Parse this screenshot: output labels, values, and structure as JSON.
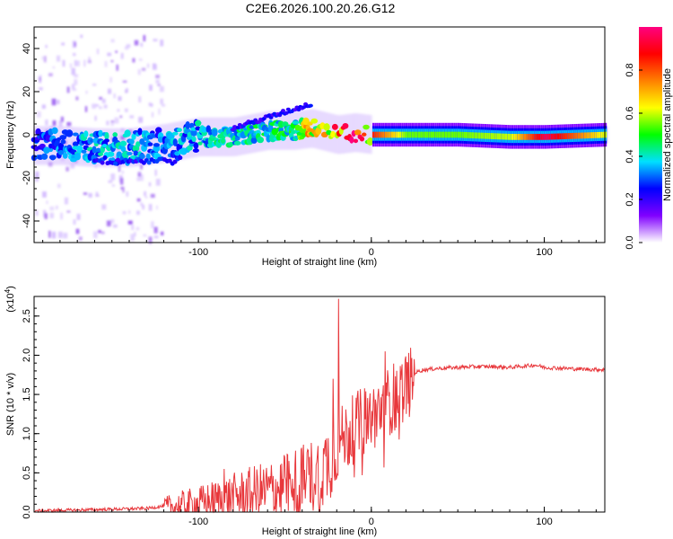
{
  "figure_title": "C2E6.2026.100.20.26.G12",
  "chart_data": [
    {
      "type": "heatmap",
      "title": "C2E6.2026.100.20.26.G12",
      "xlabel": "Height of straight line (km)",
      "ylabel": "Frequency (Hz)",
      "xlim": [
        -195,
        135
      ],
      "ylim": [
        -50,
        50
      ],
      "xticks": [
        -100,
        0,
        100
      ],
      "yticks": [
        -40,
        -20,
        0,
        20,
        40
      ],
      "colorbar": {
        "label": "Normalized spectral amplitude",
        "range": [
          0,
          1
        ],
        "ticks": [
          "0.0",
          "0.2",
          "0.4",
          "0.6",
          "0.8"
        ],
        "colors": [
          "#ffffff",
          "#8000ff",
          "#0000ff",
          "#00e0ff",
          "#00ff00",
          "#ffff00",
          "#ff8000",
          "#ff0000",
          "#ff0080"
        ]
      },
      "ridge": {
        "x": [
          -195,
          -180,
          -160,
          -140,
          -120,
          -100,
          -80,
          -60,
          -45,
          -35,
          -30,
          -20,
          -10,
          0,
          20,
          50,
          80,
          100,
          135
        ],
        "frequency": [
          -5,
          -5,
          -6,
          -6,
          -4,
          -1,
          -1,
          2,
          2,
          3,
          2,
          0,
          1,
          0,
          0,
          0,
          -1,
          -1,
          0
        ],
        "amplitude": [
          0.3,
          0.35,
          0.4,
          0.4,
          0.35,
          0.4,
          0.45,
          0.45,
          0.5,
          0.75,
          0.7,
          0.9,
          0.95,
          0.85,
          0.55,
          0.55,
          0.6,
          0.95,
          0.6
        ]
      }
    },
    {
      "type": "line",
      "xlabel": "Height of straight line (km)",
      "ylabel": "SNR (10 * v/v)",
      "yscale_label": "(x10",
      "yscale_exp": "4",
      "xlim": [
        -195,
        135
      ],
      "ylim": [
        0,
        2.75
      ],
      "xticks": [
        -100,
        0,
        100
      ],
      "yticks": [
        "0.0",
        "0.5",
        "1.0",
        "1.5",
        "2.0",
        "2.5"
      ],
      "color": "#e8383c",
      "series": [
        {
          "name": "SNR",
          "x": [
            -195,
            -170,
            -150,
            -130,
            -120,
            -110,
            -100,
            -90,
            -80,
            -70,
            -60,
            -50,
            -40,
            -30,
            -25,
            -20,
            -18,
            -15,
            -10,
            -5,
            0,
            5,
            10,
            15,
            20,
            25,
            30,
            40,
            50,
            60,
            70,
            80,
            90,
            95,
            100,
            110,
            120,
            135
          ],
          "y": [
            0.02,
            0.03,
            0.04,
            0.05,
            0.08,
            0.12,
            0.15,
            0.2,
            0.25,
            0.3,
            0.35,
            0.4,
            0.5,
            0.6,
            0.75,
            0.95,
            1.0,
            1.05,
            1.15,
            1.25,
            1.3,
            1.4,
            1.5,
            1.6,
            1.7,
            1.78,
            1.82,
            1.84,
            1.85,
            1.86,
            1.86,
            1.85,
            1.87,
            1.88,
            1.85,
            1.84,
            1.83,
            1.82
          ]
        }
      ],
      "spikes": [
        {
          "x": -19,
          "y": 2.72
        },
        {
          "x": 8,
          "y": 2.05
        },
        {
          "x": -22,
          "y": 1.7
        },
        {
          "x": -50,
          "y": 0.7
        },
        {
          "x": -85,
          "y": 0.55
        }
      ]
    }
  ]
}
